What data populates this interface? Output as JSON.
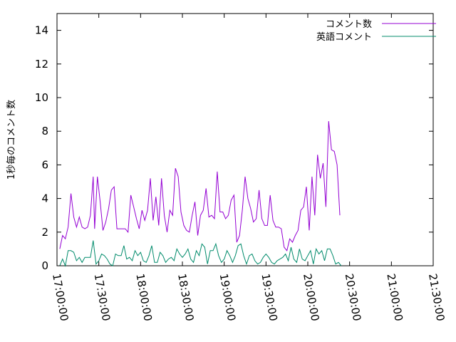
{
  "chart_data": {
    "type": "line",
    "title": "",
    "xlabel": "",
    "ylabel": "1秒毎のコメント数",
    "ylim": [
      0,
      15
    ],
    "xlim": [
      "17:00:00",
      "21:30:00"
    ],
    "x_tick_labels": [
      "17:00:00",
      "17:30:00",
      "18:00:00",
      "18:30:00",
      "19:00:00",
      "19:30:00",
      "20:00:00",
      "20:30:00",
      "21:00:00",
      "21:30:00"
    ],
    "y_ticks": [
      0,
      2,
      4,
      6,
      8,
      10,
      12,
      14
    ],
    "legend_position": "top-right",
    "grid": false,
    "series": [
      {
        "name": "コメント数",
        "color": "#9400d3",
        "points": [
          [
            "17:02:00",
            1.0
          ],
          [
            "17:04:00",
            1.8
          ],
          [
            "17:06:00",
            1.6
          ],
          [
            "17:08:00",
            2.3
          ],
          [
            "17:10:00",
            4.3
          ],
          [
            "17:12:00",
            2.9
          ],
          [
            "17:14:00",
            2.3
          ],
          [
            "17:16:00",
            2.9
          ],
          [
            "17:18:00",
            2.3
          ],
          [
            "17:20:00",
            2.2
          ],
          [
            "17:22:00",
            2.3
          ],
          [
            "17:24:00",
            3.0
          ],
          [
            "17:26:00",
            5.3
          ],
          [
            "17:27:00",
            2.2
          ],
          [
            "17:29:00",
            5.3
          ],
          [
            "17:31:00",
            3.8
          ],
          [
            "17:33:00",
            2.1
          ],
          [
            "17:35:00",
            2.6
          ],
          [
            "17:37:00",
            3.4
          ],
          [
            "17:39:00",
            4.5
          ],
          [
            "17:41:00",
            4.7
          ],
          [
            "17:43:00",
            2.2
          ],
          [
            "17:45:00",
            2.2
          ],
          [
            "17:47:00",
            2.2
          ],
          [
            "17:49:00",
            2.2
          ],
          [
            "17:51:00",
            2.0
          ],
          [
            "17:53:00",
            4.2
          ],
          [
            "17:55:00",
            3.5
          ],
          [
            "17:57:00",
            2.8
          ],
          [
            "17:59:00",
            2.2
          ],
          [
            "18:01:00",
            3.3
          ],
          [
            "18:03:00",
            2.7
          ],
          [
            "18:05:00",
            3.3
          ],
          [
            "18:07:00",
            5.2
          ],
          [
            "18:09:00",
            2.7
          ],
          [
            "18:11:00",
            4.1
          ],
          [
            "18:13:00",
            2.4
          ],
          [
            "18:15:00",
            5.2
          ],
          [
            "18:17:00",
            3.0
          ],
          [
            "18:19:00",
            2.0
          ],
          [
            "18:21:00",
            3.3
          ],
          [
            "18:23:00",
            3.0
          ],
          [
            "18:25:00",
            5.8
          ],
          [
            "18:27:00",
            5.3
          ],
          [
            "18:29:00",
            3.2
          ],
          [
            "18:31:00",
            2.4
          ],
          [
            "18:33:00",
            2.1
          ],
          [
            "18:35:00",
            2.0
          ],
          [
            "18:37:00",
            3.0
          ],
          [
            "18:39:00",
            3.8
          ],
          [
            "18:41:00",
            1.8
          ],
          [
            "18:43:00",
            3.0
          ],
          [
            "18:45:00",
            3.3
          ],
          [
            "18:47:00",
            4.6
          ],
          [
            "18:49:00",
            2.9
          ],
          [
            "18:51:00",
            3.0
          ],
          [
            "18:53:00",
            2.8
          ],
          [
            "18:55:00",
            5.6
          ],
          [
            "18:57:00",
            3.2
          ],
          [
            "18:59:00",
            3.2
          ],
          [
            "19:01:00",
            2.8
          ],
          [
            "19:03:00",
            3.0
          ],
          [
            "19:05:00",
            3.9
          ],
          [
            "19:07:00",
            4.2
          ],
          [
            "19:09:00",
            1.4
          ],
          [
            "19:11:00",
            1.8
          ],
          [
            "19:13:00",
            3.3
          ],
          [
            "19:15:00",
            5.3
          ],
          [
            "19:17:00",
            4.0
          ],
          [
            "19:19:00",
            3.4
          ],
          [
            "19:21:00",
            2.6
          ],
          [
            "19:23:00",
            2.8
          ],
          [
            "19:25:00",
            4.5
          ],
          [
            "19:27:00",
            2.8
          ],
          [
            "19:29:00",
            2.4
          ],
          [
            "19:31:00",
            2.4
          ],
          [
            "19:33:00",
            4.2
          ],
          [
            "19:35:00",
            2.7
          ],
          [
            "19:37:00",
            2.3
          ],
          [
            "19:39:00",
            2.3
          ],
          [
            "19:41:00",
            2.2
          ],
          [
            "19:43:00",
            1.1
          ],
          [
            "19:45:00",
            0.9
          ],
          [
            "19:47:00",
            1.6
          ],
          [
            "19:49:00",
            1.4
          ],
          [
            "19:51:00",
            1.8
          ],
          [
            "19:53:00",
            2.1
          ],
          [
            "19:55:00",
            3.3
          ],
          [
            "19:57:00",
            3.5
          ],
          [
            "19:59:00",
            4.7
          ],
          [
            "20:01:00",
            2.1
          ],
          [
            "20:03:00",
            5.3
          ],
          [
            "20:05:00",
            3.0
          ],
          [
            "20:07:00",
            6.6
          ],
          [
            "20:09:00",
            5.2
          ],
          [
            "20:11:00",
            6.1
          ],
          [
            "20:13:00",
            3.5
          ],
          [
            "20:15:00",
            8.6
          ],
          [
            "20:17:00",
            6.9
          ],
          [
            "20:19:00",
            6.8
          ],
          [
            "20:21:00",
            6.0
          ],
          [
            "20:23:00",
            3.0
          ]
        ]
      },
      {
        "name": "英語コメント",
        "color": "#008b6b",
        "points": [
          [
            "17:02:00",
            0.0
          ],
          [
            "17:04:00",
            0.4
          ],
          [
            "17:06:00",
            0.0
          ],
          [
            "17:08:00",
            0.9
          ],
          [
            "17:10:00",
            0.9
          ],
          [
            "17:12:00",
            0.8
          ],
          [
            "17:14:00",
            0.3
          ],
          [
            "17:16:00",
            0.5
          ],
          [
            "17:18:00",
            0.2
          ],
          [
            "17:20:00",
            0.5
          ],
          [
            "17:22:00",
            0.5
          ],
          [
            "17:24:00",
            0.5
          ],
          [
            "17:26:00",
            1.5
          ],
          [
            "17:28:00",
            0.1
          ],
          [
            "17:30:00",
            0.3
          ],
          [
            "17:32:00",
            0.7
          ],
          [
            "17:34:00",
            0.6
          ],
          [
            "17:36:00",
            0.4
          ],
          [
            "17:38:00",
            0.1
          ],
          [
            "17:40:00",
            0.0
          ],
          [
            "17:42:00",
            0.7
          ],
          [
            "17:44:00",
            0.6
          ],
          [
            "17:46:00",
            0.6
          ],
          [
            "17:48:00",
            1.2
          ],
          [
            "17:50:00",
            0.4
          ],
          [
            "17:52:00",
            0.5
          ],
          [
            "17:54:00",
            0.3
          ],
          [
            "17:56:00",
            0.9
          ],
          [
            "17:58:00",
            0.6
          ],
          [
            "18:00:00",
            0.8
          ],
          [
            "18:02:00",
            0.3
          ],
          [
            "18:04:00",
            0.2
          ],
          [
            "18:06:00",
            0.6
          ],
          [
            "18:08:00",
            1.2
          ],
          [
            "18:10:00",
            0.2
          ],
          [
            "18:12:00",
            0.2
          ],
          [
            "18:14:00",
            0.8
          ],
          [
            "18:16:00",
            0.6
          ],
          [
            "18:18:00",
            0.2
          ],
          [
            "18:20:00",
            0.4
          ],
          [
            "18:22:00",
            0.5
          ],
          [
            "18:24:00",
            0.3
          ],
          [
            "18:26:00",
            1.0
          ],
          [
            "18:28:00",
            0.7
          ],
          [
            "18:30:00",
            0.5
          ],
          [
            "18:32:00",
            0.7
          ],
          [
            "18:34:00",
            1.0
          ],
          [
            "18:36:00",
            0.4
          ],
          [
            "18:38:00",
            0.2
          ],
          [
            "18:40:00",
            0.9
          ],
          [
            "18:42:00",
            0.6
          ],
          [
            "18:44:00",
            1.3
          ],
          [
            "18:46:00",
            1.1
          ],
          [
            "18:48:00",
            0.1
          ],
          [
            "18:50:00",
            0.9
          ],
          [
            "18:52:00",
            0.9
          ],
          [
            "18:54:00",
            1.3
          ],
          [
            "18:56:00",
            0.6
          ],
          [
            "18:58:00",
            0.2
          ],
          [
            "19:00:00",
            0.4
          ],
          [
            "19:02:00",
            0.9
          ],
          [
            "19:04:00",
            0.6
          ],
          [
            "19:06:00",
            0.2
          ],
          [
            "19:08:00",
            0.6
          ],
          [
            "19:10:00",
            1.2
          ],
          [
            "19:12:00",
            1.3
          ],
          [
            "19:14:00",
            0.6
          ],
          [
            "19:16:00",
            0.1
          ],
          [
            "19:18:00",
            0.6
          ],
          [
            "19:20:00",
            0.7
          ],
          [
            "19:22:00",
            0.3
          ],
          [
            "19:24:00",
            0.1
          ],
          [
            "19:26:00",
            0.2
          ],
          [
            "19:28:00",
            0.5
          ],
          [
            "19:30:00",
            0.7
          ],
          [
            "19:32:00",
            0.5
          ],
          [
            "19:34:00",
            0.2
          ],
          [
            "19:36:00",
            0.1
          ],
          [
            "19:38:00",
            0.3
          ],
          [
            "19:40:00",
            0.4
          ],
          [
            "19:42:00",
            0.5
          ],
          [
            "19:44:00",
            0.7
          ],
          [
            "19:46:00",
            0.3
          ],
          [
            "19:48:00",
            1.1
          ],
          [
            "19:50:00",
            0.4
          ],
          [
            "19:52:00",
            0.2
          ],
          [
            "19:54:00",
            1.0
          ],
          [
            "19:56:00",
            0.4
          ],
          [
            "19:58:00",
            0.3
          ],
          [
            "20:00:00",
            0.6
          ],
          [
            "20:02:00",
            0.9
          ],
          [
            "20:04:00",
            0.1
          ],
          [
            "20:06:00",
            1.0
          ],
          [
            "20:08:00",
            0.7
          ],
          [
            "20:10:00",
            0.9
          ],
          [
            "20:12:00",
            0.3
          ],
          [
            "20:14:00",
            1.0
          ],
          [
            "20:16:00",
            1.0
          ],
          [
            "20:18:00",
            0.6
          ],
          [
            "20:20:00",
            0.1
          ],
          [
            "20:22:00",
            0.2
          ],
          [
            "20:24:00",
            0.0
          ]
        ]
      }
    ]
  }
}
